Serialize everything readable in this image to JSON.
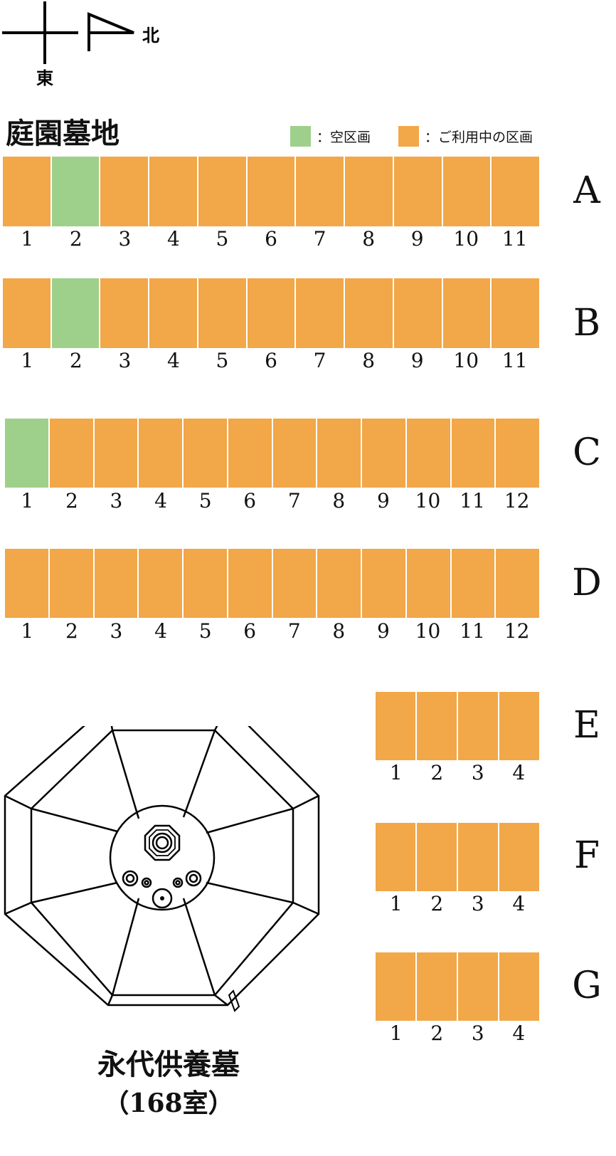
{
  "compass": {
    "north": "北",
    "east": "東"
  },
  "title": "庭園墓地",
  "legend": [
    {
      "color": "#9ed08b",
      "label": "：空区画",
      "status": "vacant"
    },
    {
      "color": "#f2a748",
      "label": "：ご利用中の区画",
      "status": "occupied"
    }
  ],
  "colors": {
    "vacant": "#9ed08b",
    "occupied": "#f2a748"
  },
  "rows": [
    {
      "label": "A",
      "numbers": [
        "1",
        "2",
        "3",
        "4",
        "5",
        "6",
        "7",
        "8",
        "9",
        "10",
        "11"
      ],
      "vacant": [
        2
      ]
    },
    {
      "label": "B",
      "numbers": [
        "1",
        "2",
        "3",
        "4",
        "5",
        "6",
        "7",
        "8",
        "9",
        "10",
        "11"
      ],
      "vacant": [
        2
      ]
    },
    {
      "label": "C",
      "numbers": [
        "1",
        "2",
        "3",
        "4",
        "5",
        "6",
        "7",
        "8",
        "9",
        "10",
        "11",
        "12"
      ],
      "vacant": [
        1
      ]
    },
    {
      "label": "D",
      "numbers": [
        "1",
        "2",
        "3",
        "4",
        "5",
        "6",
        "7",
        "8",
        "9",
        "10",
        "11",
        "12"
      ],
      "vacant": []
    },
    {
      "label": "E",
      "numbers": [
        "1",
        "2",
        "3",
        "4"
      ],
      "vacant": []
    },
    {
      "label": "F",
      "numbers": [
        "1",
        "2",
        "3",
        "4"
      ],
      "vacant": []
    },
    {
      "label": "G",
      "numbers": [
        "1",
        "2",
        "3",
        "4"
      ],
      "vacant": []
    }
  ],
  "memorial": {
    "name": "永代供養墓",
    "capacity": "（168室）"
  }
}
